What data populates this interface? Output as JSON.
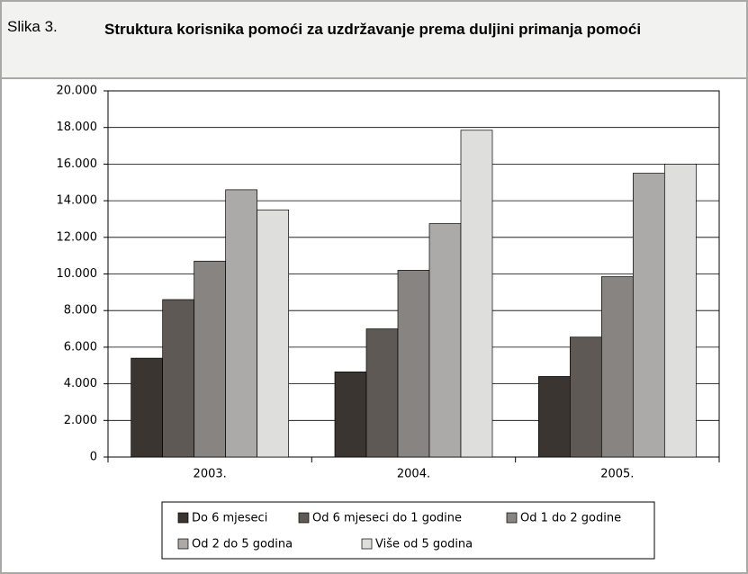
{
  "figure_label": "Slika 3.",
  "chart_data": {
    "type": "bar",
    "title": "Struktura korisnika pomoći za uzdržavanje prema duljini primanja pomoći",
    "categories": [
      "2003.",
      "2004.",
      "2005."
    ],
    "series": [
      {
        "name": "Do 6 mjeseci",
        "color": "#3a3531",
        "values": [
          5400,
          4650,
          4400
        ]
      },
      {
        "name": "Od 6 mjeseci do 1 godine",
        "color": "#5f5955",
        "values": [
          8600,
          7000,
          6550
        ]
      },
      {
        "name": "Od 1 do 2 godine",
        "color": "#878482",
        "values": [
          10700,
          10200,
          9850
        ]
      },
      {
        "name": "Od 2 do 5 godina",
        "color": "#acaaa8",
        "values": [
          14600,
          12750,
          15500
        ]
      },
      {
        "name": "Više od 5 godina",
        "color": "#dededd",
        "values": [
          13500,
          17850,
          16000
        ]
      }
    ],
    "ylim": [
      0,
      20000
    ],
    "yticks": [
      0,
      {
        "value": 2000,
        "label": "2.000"
      },
      {
        "value": 4000,
        "label": "4.000"
      },
      {
        "value": 6000,
        "label": "6.000"
      },
      {
        "value": 8000,
        "label": "8.000"
      },
      {
        "value": 10000,
        "label": "10.000"
      },
      {
        "value": 12000,
        "label": "12.000"
      },
      {
        "value": 14000,
        "label": "14.000"
      },
      {
        "value": 16000,
        "label": "16.000"
      },
      {
        "value": 18000,
        "label": "18.000"
      },
      {
        "value": 20000,
        "label": "20.000"
      }
    ],
    "grid": true
  }
}
